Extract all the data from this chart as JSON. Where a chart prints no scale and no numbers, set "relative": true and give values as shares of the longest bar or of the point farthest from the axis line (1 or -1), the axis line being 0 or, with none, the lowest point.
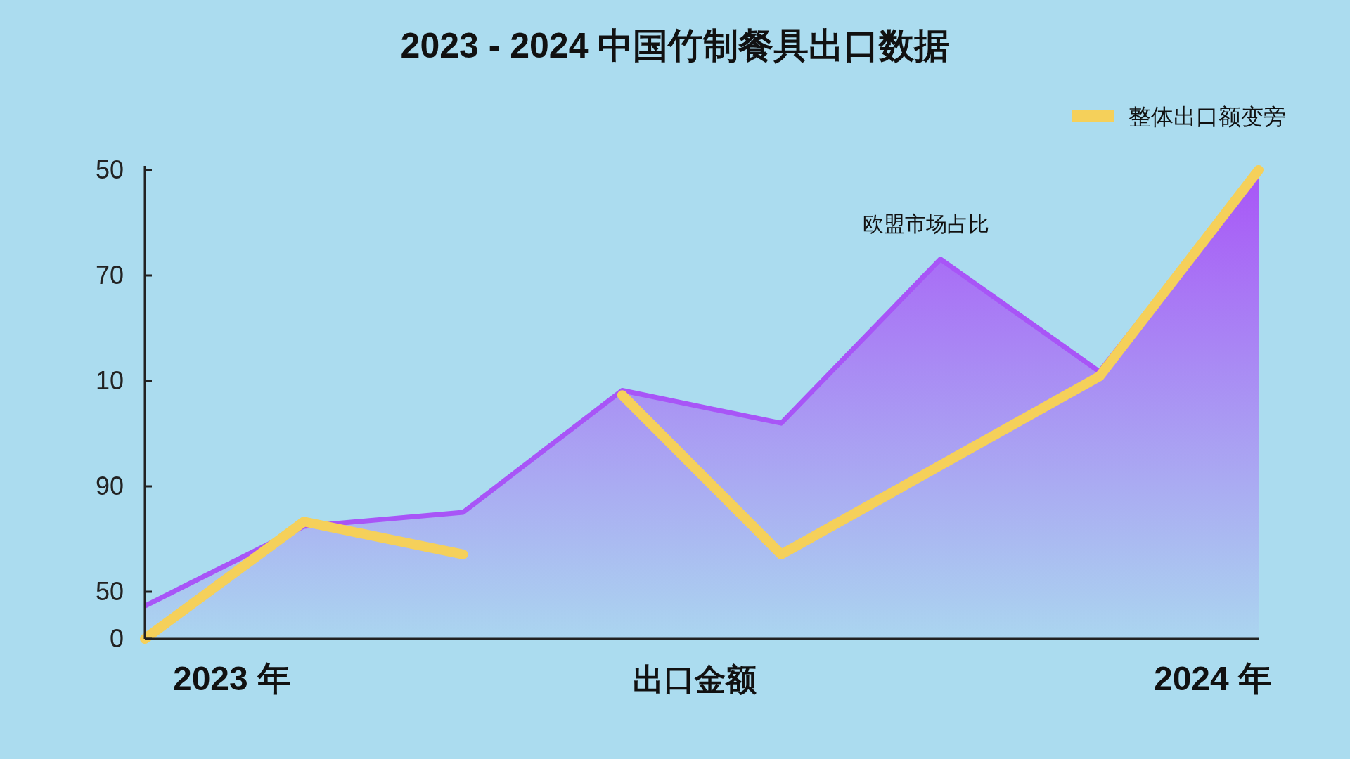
{
  "chart_data": {
    "type": "area",
    "title": "2023 - 2024 中国竹制餐具出口数据",
    "xlabel": "出口金额",
    "relative": true,
    "categories": [
      null,
      null,
      null,
      null,
      null,
      null,
      null,
      null
    ],
    "annotations": [
      "50",
      "70",
      "10",
      "90",
      "50",
      "0",
      "2023 年",
      "2024 年"
    ],
    "series": [
      {
        "name": "欧盟市场占比",
        "color": "#a855f7",
        "values": [
          0.07,
          0.24,
          0.27,
          0.53,
          0.46,
          0.81,
          0.57,
          1
        ]
      },
      {
        "name": "整体出口额变旁",
        "type": "line",
        "color": "#f5d05a",
        "values": [
          0,
          0.25,
          0.18,
          null,
          null,
          null,
          null,
          null
        ]
      },
      {
        "type": "line",
        "color": "#f5d05a",
        "values": [
          null,
          null,
          null,
          0.52,
          0.18,
          0.37,
          0.56,
          1
        ]
      }
    ],
    "legend": "top right",
    "grid": false,
    "marker": "none",
    "line_style": "solid"
  }
}
